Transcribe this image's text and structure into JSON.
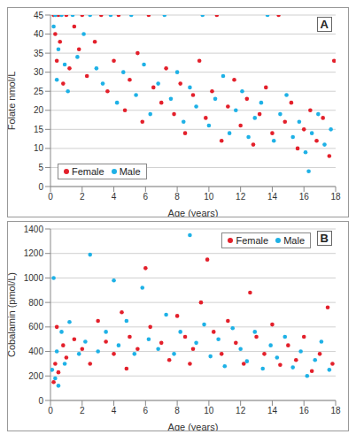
{
  "chart_data": [
    {
      "type": "scatter",
      "panel_label": "A",
      "xlabel": "Age (years)",
      "ylabel": "Folate nmol/L",
      "xlim": [
        0,
        18
      ],
      "xticks": [
        0,
        2,
        4,
        6,
        8,
        10,
        12,
        14,
        16,
        18
      ],
      "ylim": [
        0,
        45
      ],
      "yticks": [
        0,
        5,
        10,
        15,
        20,
        25,
        30,
        35,
        40,
        45
      ],
      "grid": true,
      "legend": "lower left",
      "series": [
        {
          "name": "Female",
          "color": "#e3202b",
          "marker": "circle",
          "x": [
            0.2,
            0.3,
            0.4,
            0.5,
            0.6,
            0.8,
            1.0,
            1.2,
            1.5,
            1.8,
            2.0,
            2.3,
            2.8,
            3.2,
            3.6,
            4.0,
            4.3,
            4.7,
            5.0,
            5.5,
            5.8,
            6.2,
            6.5,
            7.0,
            7.3,
            7.8,
            8.2,
            8.5,
            9.0,
            9.4,
            9.8,
            10.2,
            10.5,
            10.8,
            11.2,
            11.6,
            12.0,
            12.4,
            12.8,
            13.2,
            13.6,
            14.0,
            14.4,
            14.8,
            15.2,
            15.6,
            16.0,
            16.4,
            16.8,
            17.2,
            17.6,
            17.9
          ],
          "values": [
            45,
            40,
            33,
            45,
            38,
            27,
            45,
            31,
            42,
            36,
            45,
            29,
            38,
            45,
            25,
            33,
            45,
            20,
            28,
            35,
            17,
            45,
            26,
            22,
            31,
            19,
            27,
            14,
            24,
            33,
            18,
            25,
            45,
            12,
            21,
            28,
            16,
            23,
            11,
            19,
            26,
            14,
            45,
            17,
            22,
            10,
            15,
            20,
            12,
            18,
            8,
            33
          ]
        },
        {
          "name": "Male",
          "color": "#1eb1e6",
          "marker": "circle",
          "x": [
            0.2,
            0.3,
            0.4,
            0.5,
            0.7,
            0.9,
            1.1,
            1.4,
            1.7,
            2.1,
            2.5,
            2.9,
            3.3,
            3.8,
            4.2,
            4.6,
            5.1,
            5.4,
            5.9,
            6.3,
            6.8,
            7.2,
            7.6,
            8.0,
            8.4,
            8.8,
            9.2,
            9.6,
            10.0,
            10.4,
            10.9,
            11.3,
            11.7,
            12.1,
            12.5,
            12.9,
            13.3,
            13.7,
            14.1,
            14.5,
            14.9,
            15.3,
            15.7,
            16.1,
            16.5,
            16.9,
            17.3,
            17.7,
            16.3
          ],
          "values": [
            42,
            45,
            28,
            36,
            45,
            32,
            25,
            45,
            34,
            40,
            45,
            31,
            27,
            45,
            22,
            30,
            45,
            24,
            32,
            19,
            27,
            45,
            23,
            30,
            17,
            26,
            21,
            45,
            16,
            23,
            29,
            14,
            20,
            25,
            13,
            18,
            22,
            45,
            12,
            19,
            24,
            13,
            17,
            9,
            14,
            19,
            11,
            15,
            4
          ]
        }
      ]
    },
    {
      "type": "scatter",
      "panel_label": "B",
      "xlabel": "Age (years)",
      "ylabel": "Cobalamin (pmol/L)",
      "xlim": [
        0,
        18
      ],
      "xticks": [
        0,
        2,
        4,
        6,
        8,
        10,
        12,
        14,
        16,
        18
      ],
      "ylim": [
        0,
        1400
      ],
      "yticks": [
        0,
        200,
        400,
        600,
        800,
        1000,
        1200,
        1400
      ],
      "grid": true,
      "legend": "upper right",
      "series": [
        {
          "name": "Female",
          "color": "#e3202b",
          "marker": "circle",
          "x": [
            0.2,
            0.3,
            0.4,
            0.5,
            0.8,
            1.0,
            1.5,
            2.0,
            2.5,
            3.0,
            3.5,
            4.0,
            4.5,
            5.0,
            5.5,
            6.0,
            6.3,
            7.0,
            7.5,
            8.0,
            8.5,
            9.0,
            9.5,
            9.9,
            10.3,
            10.8,
            11.2,
            11.7,
            12.2,
            12.6,
            13.0,
            13.5,
            14.0,
            14.5,
            15.0,
            15.5,
            16.0,
            16.5,
            17.0,
            17.5,
            17.8,
            8.8,
            4.8
          ],
          "values": [
            150,
            300,
            600,
            230,
            450,
            350,
            500,
            420,
            300,
            650,
            480,
            380,
            720,
            520,
            420,
            1080,
            600,
            470,
            330,
            690,
            520,
            420,
            800,
            1150,
            560,
            380,
            650,
            470,
            300,
            880,
            520,
            380,
            620,
            290,
            450,
            330,
            520,
            240,
            380,
            760,
            300,
            300,
            260
          ]
        },
        {
          "name": "Male",
          "color": "#1eb1e6",
          "marker": "circle",
          "x": [
            0.1,
            0.2,
            0.3,
            0.4,
            0.5,
            0.7,
            0.9,
            1.2,
            1.8,
            2.2,
            2.5,
            3.0,
            3.5,
            4.0,
            4.3,
            4.8,
            5.3,
            5.8,
            6.2,
            6.8,
            7.3,
            7.8,
            8.2,
            8.8,
            9.2,
            9.7,
            10.1,
            10.6,
            11.0,
            11.5,
            12.0,
            12.4,
            12.9,
            13.4,
            13.9,
            14.3,
            14.8,
            15.3,
            15.8,
            16.2,
            16.7,
            17.1,
            17.6
          ],
          "values": [
            250,
            1000,
            180,
            400,
            120,
            560,
            300,
            640,
            380,
            480,
            1190,
            400,
            560,
            980,
            450,
            650,
            380,
            920,
            500,
            420,
            700,
            380,
            560,
            1350,
            470,
            620,
            360,
            500,
            280,
            590,
            420,
            320,
            560,
            260,
            450,
            350,
            520,
            270,
            400,
            200,
            330,
            480,
            250
          ]
        }
      ]
    }
  ]
}
